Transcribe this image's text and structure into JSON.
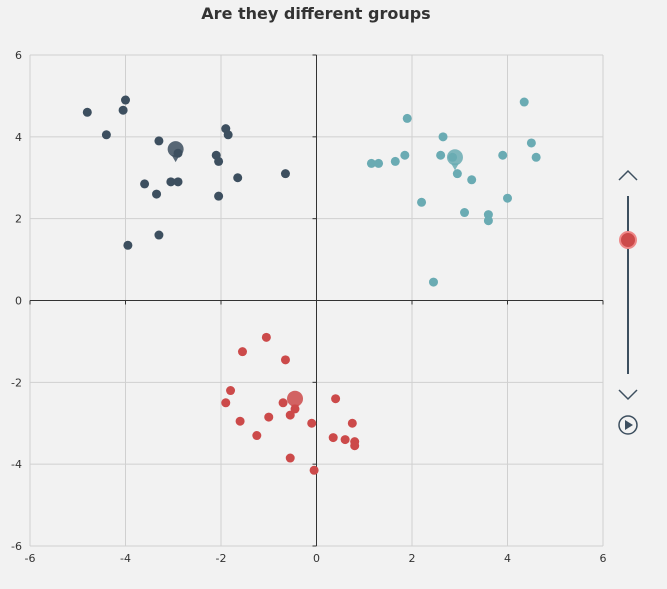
{
  "chart_data": {
    "type": "scatter",
    "title": "Are they different groups",
    "xlim": [
      -6,
      6
    ],
    "ylim": [
      -6,
      6
    ],
    "x_ticks": [
      -6,
      -4,
      -2,
      0,
      2,
      4,
      6
    ],
    "y_ticks": [
      -6,
      -4,
      -2,
      0,
      2,
      4,
      6
    ],
    "grid": true,
    "series": [
      {
        "color": "#3d4f5f",
        "centroid": [
          -2.95,
          3.7
        ],
        "points": [
          [
            -4.8,
            4.6
          ],
          [
            -4.0,
            4.9
          ],
          [
            -4.05,
            4.65
          ],
          [
            -4.4,
            4.05
          ],
          [
            -3.3,
            3.9
          ],
          [
            -3.6,
            2.85
          ],
          [
            -3.35,
            2.6
          ],
          [
            -3.05,
            2.9
          ],
          [
            -2.9,
            2.9
          ],
          [
            -2.9,
            3.6
          ],
          [
            -3.95,
            1.35
          ],
          [
            -3.3,
            1.6
          ],
          [
            -2.1,
            3.55
          ],
          [
            -2.05,
            3.4
          ],
          [
            -1.9,
            4.2
          ],
          [
            -1.85,
            4.05
          ],
          [
            -1.65,
            3.0
          ],
          [
            -2.05,
            2.55
          ],
          [
            -0.65,
            3.1
          ]
        ]
      },
      {
        "color": "#6aabb3",
        "centroid": [
          2.9,
          3.5
        ],
        "points": [
          [
            1.15,
            3.35
          ],
          [
            1.3,
            3.35
          ],
          [
            1.65,
            3.4
          ],
          [
            1.85,
            3.55
          ],
          [
            1.9,
            4.45
          ],
          [
            2.6,
            3.55
          ],
          [
            2.65,
            4.0
          ],
          [
            2.85,
            3.5
          ],
          [
            2.95,
            3.1
          ],
          [
            3.25,
            2.95
          ],
          [
            3.9,
            3.55
          ],
          [
            4.35,
            4.85
          ],
          [
            4.5,
            3.85
          ],
          [
            4.6,
            3.5
          ],
          [
            4.0,
            2.5
          ],
          [
            3.1,
            2.15
          ],
          [
            3.6,
            2.1
          ],
          [
            3.6,
            1.95
          ],
          [
            2.2,
            2.4
          ],
          [
            2.45,
            0.45
          ]
        ]
      },
      {
        "color": "#cc4a4a",
        "centroid": [
          -0.45,
          -2.4
        ],
        "points": [
          [
            -1.05,
            -0.9
          ],
          [
            -0.65,
            -1.45
          ],
          [
            -1.55,
            -1.25
          ],
          [
            -1.8,
            -2.2
          ],
          [
            -1.9,
            -2.5
          ],
          [
            -1.6,
            -2.95
          ],
          [
            -1.25,
            -3.3
          ],
          [
            -1.0,
            -2.85
          ],
          [
            -0.7,
            -2.5
          ],
          [
            -0.45,
            -2.65
          ],
          [
            -0.55,
            -2.8
          ],
          [
            -0.1,
            -3.0
          ],
          [
            0.35,
            -3.35
          ],
          [
            0.4,
            -2.4
          ],
          [
            0.6,
            -3.4
          ],
          [
            0.75,
            -3.0
          ],
          [
            0.8,
            -3.45
          ],
          [
            0.8,
            -3.55
          ],
          [
            -0.55,
            -3.85
          ],
          [
            -0.05,
            -4.15
          ]
        ]
      }
    ]
  },
  "slider": {
    "value": 0.0,
    "handle_color": "#cc4a4a",
    "up_icon": "chevron-up-icon",
    "down_icon": "chevron-down-icon",
    "play_icon": "play-icon"
  }
}
